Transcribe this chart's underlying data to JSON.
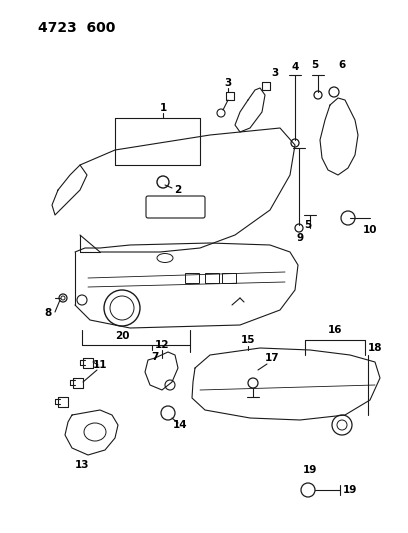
{
  "title": "4723  600",
  "bg_color": "#ffffff",
  "line_color": "#1a1a1a",
  "title_fontsize": 10,
  "label_fontsize": 7.5,
  "fig_width": 4.08,
  "fig_height": 5.33,
  "dpi": 100
}
